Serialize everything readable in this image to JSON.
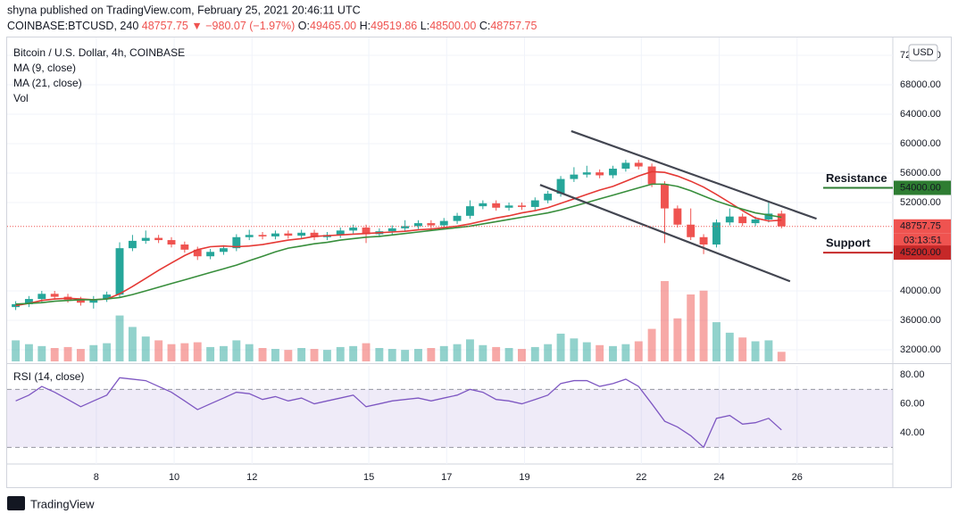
{
  "header": {
    "publisher": "shyna published on TradingView.com, February 25, 2021 20:46:11 UTC",
    "symbol": "COINBASE:BTCUSD, 240",
    "price": "48757.75",
    "arrow": "▼",
    "change": "−980.07 (−1.97%)",
    "ohlc": [
      [
        "O:",
        "49465.00"
      ],
      [
        "H:",
        "49519.86"
      ],
      [
        "L:",
        "48500.00"
      ],
      [
        "C:",
        "48757.75"
      ]
    ]
  },
  "footer": {
    "brand": "TradingView"
  },
  "chart_data": {
    "type": "candlestick",
    "title": "Bitcoin / U.S. Dollar, 4h, COINBASE",
    "currency": "USD",
    "up_color": "#26a69a",
    "down_color": "#ef5350",
    "xlim": [
      5.71,
      28.46
    ],
    "xticks": [
      8,
      10,
      12,
      15,
      17,
      19,
      22,
      24,
      26
    ],
    "ylim": [
      30424,
      74424
    ],
    "yticks": [
      {
        "value": 32000,
        "label": "32000.00"
      },
      {
        "value": 36000,
        "label": "36000.00"
      },
      {
        "value": 40000,
        "label": "40000.00"
      },
      {
        "value": 52000,
        "label": "52000.00"
      },
      {
        "value": 56000,
        "label": "56000.00"
      },
      {
        "value": 60000,
        "label": "60000.00"
      },
      {
        "value": 64000,
        "label": "64000.00"
      },
      {
        "value": 68000,
        "label": "68000.00"
      },
      {
        "value": 72000,
        "label": "72000.00"
      }
    ],
    "x": [
      5.93,
      6.27,
      6.6,
      6.93,
      7.27,
      7.6,
      7.93,
      8.27,
      8.6,
      8.93,
      9.27,
      9.6,
      9.93,
      10.27,
      10.6,
      10.93,
      11.27,
      11.6,
      11.93,
      12.27,
      12.6,
      12.93,
      13.27,
      13.6,
      13.93,
      14.27,
      14.6,
      14.93,
      15.27,
      15.6,
      15.93,
      16.27,
      16.6,
      16.93,
      17.27,
      17.6,
      17.93,
      18.27,
      18.6,
      18.93,
      19.27,
      19.6,
      19.93,
      20.27,
      20.6,
      20.93,
      21.27,
      21.6,
      21.93,
      22.27,
      22.6,
      22.93,
      23.27,
      23.6,
      23.93,
      24.27,
      24.6,
      24.93,
      25.27,
      25.6
    ],
    "open": [
      37800,
      38200,
      38900,
      39600,
      39200,
      38800,
      38400,
      38900,
      39500,
      45800,
      46800,
      47200,
      46900,
      46300,
      45600,
      44700,
      45300,
      45800,
      47300,
      47600,
      47400,
      47800,
      47500,
      47900,
      47300,
      47600,
      48200,
      48600,
      47700,
      48100,
      48500,
      48800,
      49200,
      48900,
      49500,
      50200,
      51500,
      51900,
      51300,
      51600,
      51400,
      52300,
      53200,
      55200,
      55800,
      56100,
      55700,
      56600,
      57400,
      56900,
      54500,
      51200,
      49000,
      47300,
      46300,
      49300,
      50100,
      49200,
      49700,
      50500
    ],
    "high": [
      38600,
      39300,
      40000,
      40000,
      39600,
      39200,
      39300,
      39900,
      46600,
      47600,
      48200,
      47600,
      47300,
      46700,
      46000,
      45700,
      46200,
      47700,
      48300,
      48000,
      48200,
      48200,
      48300,
      48300,
      48000,
      48600,
      49000,
      49000,
      48500,
      48900,
      49600,
      49600,
      49600,
      49900,
      50600,
      52300,
      52300,
      52300,
      52000,
      52000,
      52700,
      53600,
      55600,
      56800,
      57000,
      56500,
      57000,
      57800,
      57800,
      57300,
      54900,
      51600,
      51200,
      47700,
      49700,
      51200,
      50500,
      50100,
      52000,
      50900
    ],
    "low": [
      37400,
      37800,
      38500,
      38800,
      38400,
      38000,
      37600,
      38500,
      39100,
      45400,
      46400,
      46500,
      45900,
      45200,
      44200,
      44300,
      44900,
      45400,
      46900,
      47000,
      47000,
      47100,
      47100,
      46900,
      46900,
      47200,
      47800,
      46500,
      47300,
      47700,
      48100,
      48400,
      48500,
      48500,
      49100,
      49800,
      51100,
      50900,
      50900,
      51000,
      51000,
      51900,
      52800,
      54800,
      55400,
      55300,
      55300,
      56200,
      56500,
      54100,
      46500,
      48600,
      46900,
      45000,
      45900,
      48900,
      48800,
      48800,
      49300,
      48500
    ],
    "close": [
      38200,
      38900,
      39600,
      39200,
      38800,
      38400,
      38900,
      39500,
      45800,
      46800,
      47200,
      46900,
      46300,
      45600,
      44700,
      45300,
      45800,
      47300,
      47600,
      47400,
      47800,
      47500,
      47900,
      47300,
      47600,
      48200,
      48600,
      47700,
      48100,
      48500,
      48800,
      49200,
      48900,
      49500,
      50200,
      51500,
      51900,
      51300,
      51600,
      51400,
      52300,
      53200,
      55200,
      55800,
      56100,
      55700,
      56600,
      57400,
      56900,
      54500,
      51200,
      49000,
      47300,
      46300,
      49300,
      50100,
      49200,
      49700,
      50500,
      48757.75
    ],
    "series": [
      {
        "name": "MA (9, close)",
        "color": "#e53935",
        "values": [
          38000,
          38300,
          38700,
          38900,
          39000,
          38900,
          38800,
          38900,
          39600,
          40600,
          41700,
          42800,
          43800,
          44800,
          45600,
          46000,
          46100,
          46000,
          46100,
          46300,
          46600,
          46900,
          47100,
          47400,
          47500,
          47600,
          47700,
          47800,
          47900,
          48000,
          48100,
          48300,
          48400,
          48600,
          48800,
          49100,
          49500,
          49900,
          50200,
          50600,
          50900,
          51300,
          51900,
          52500,
          53100,
          53700,
          54200,
          54900,
          55600,
          56200,
          56100,
          55600,
          54900,
          54100,
          53100,
          52000,
          50900,
          49900,
          49500,
          49600
        ]
      },
      {
        "name": "MA (21, close)",
        "color": "#388e3c",
        "values": [
          38200,
          38300,
          38400,
          38600,
          38700,
          38800,
          38800,
          38900,
          39100,
          39500,
          40000,
          40500,
          41000,
          41500,
          42000,
          42500,
          43000,
          43500,
          44100,
          44700,
          45300,
          45800,
          46100,
          46400,
          46600,
          46900,
          47100,
          47300,
          47400,
          47600,
          47800,
          48000,
          48200,
          48400,
          48600,
          48800,
          49100,
          49400,
          49700,
          50000,
          50300,
          50600,
          51000,
          51500,
          52000,
          52500,
          53000,
          53500,
          54000,
          54500,
          54500,
          54200,
          53600,
          52900,
          52200,
          51600,
          51100,
          50600,
          50300,
          50000
        ]
      }
    ],
    "volume_label": "Vol",
    "volume": [
      2200,
      1800,
      1600,
      1400,
      1500,
      1300,
      1700,
      1900,
      4800,
      3600,
      2600,
      2200,
      1800,
      1900,
      2000,
      1500,
      1600,
      2200,
      1800,
      1400,
      1300,
      1200,
      1400,
      1300,
      1200,
      1500,
      1600,
      1900,
      1400,
      1300,
      1200,
      1300,
      1400,
      1600,
      1800,
      2300,
      1700,
      1500,
      1400,
      1300,
      1500,
      1800,
      2900,
      2400,
      2000,
      1700,
      1600,
      1800,
      2100,
      3400,
      8400,
      4500,
      7000,
      7400,
      4100,
      3000,
      2500,
      2100,
      2200,
      1000
    ],
    "last_price": 48757.75,
    "countdown": "03:13:51",
    "trendlines": [
      {
        "color": "#434651",
        "x": [
          20.2,
          26.5
        ],
        "y": [
          61700,
          49800
        ]
      },
      {
        "color": "#434651",
        "x": [
          19.4,
          25.82
        ],
        "y": [
          54400,
          41300
        ]
      }
    ],
    "levels": [
      {
        "name": "Resistance",
        "color": "#c62828",
        "line_color": "#2e7d32",
        "price": {
          "value": 54000,
          "label": "54000.00"
        }
      },
      {
        "name": "Support",
        "color": "#1b5e20",
        "line_color": "#c62828",
        "price": {
          "value": 45200,
          "label": "45200.00"
        }
      }
    ],
    "rsi": {
      "name": "RSI (14, close)",
      "color": "#7e57c2",
      "ylim": [
        18.5,
        86.2
      ],
      "band": [
        30,
        70
      ],
      "yticks": [
        {
          "value": 40,
          "label": "40.00"
        },
        {
          "value": 60,
          "label": "60.00"
        },
        {
          "value": 80,
          "label": "80.00"
        }
      ],
      "values": [
        62,
        66,
        72,
        68,
        63,
        58,
        62,
        66,
        78,
        77,
        76,
        72,
        68,
        62,
        56,
        60,
        64,
        68,
        67,
        63,
        65,
        62,
        64,
        60,
        62,
        64,
        66,
        58,
        60,
        62,
        63,
        64,
        62,
        64,
        66,
        70,
        68,
        63,
        62,
        60,
        63,
        66,
        74,
        76,
        76,
        72,
        74,
        77,
        72,
        60,
        48,
        44,
        38,
        30,
        50,
        52,
        46,
        47,
        50,
        42
      ]
    }
  }
}
